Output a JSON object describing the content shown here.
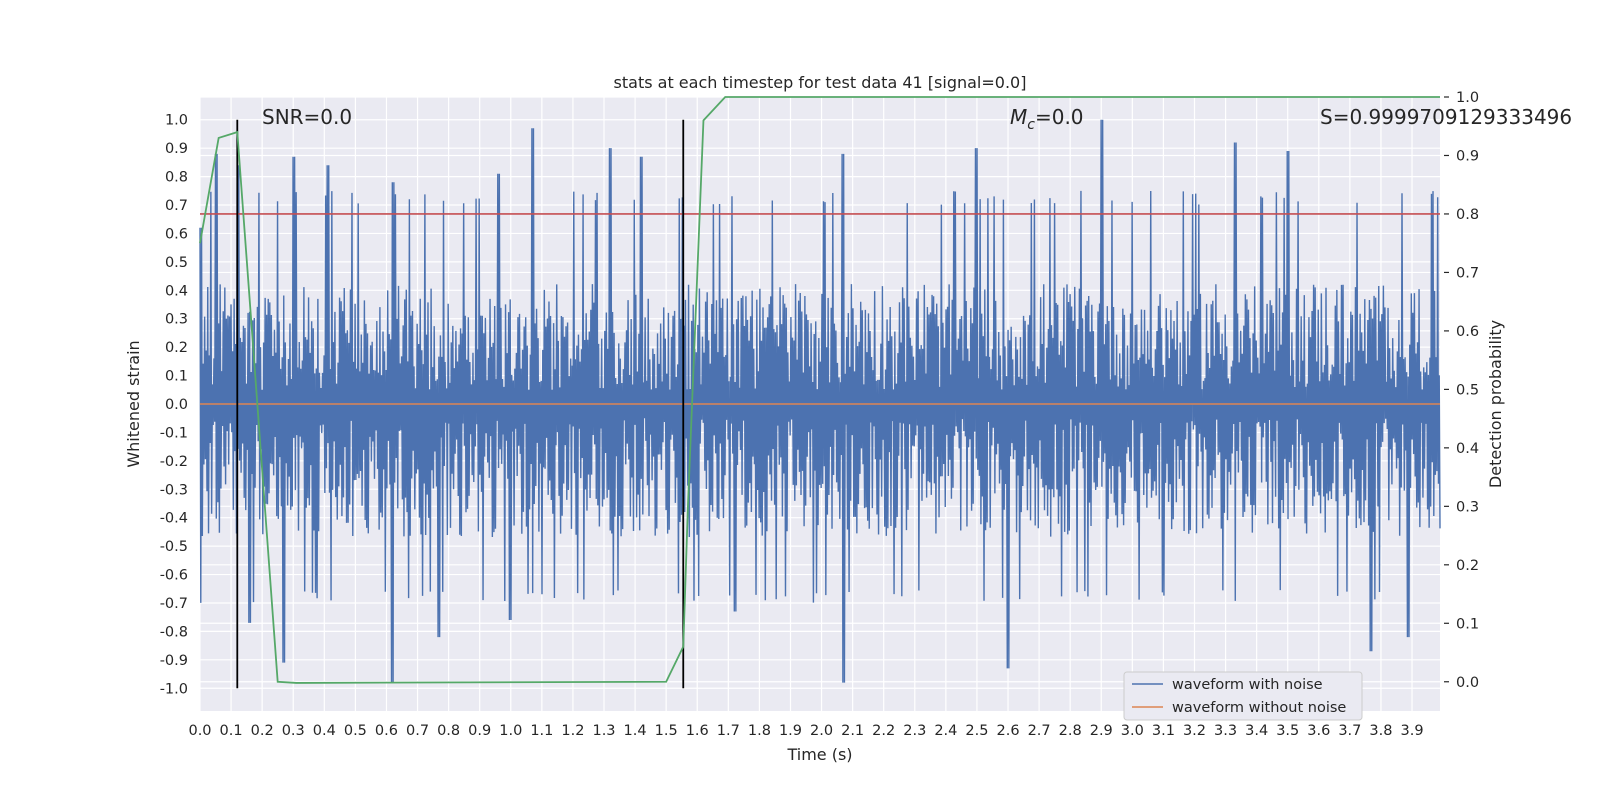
{
  "chart_data": {
    "type": "line",
    "title": "stats at each timestep for test data 41 [signal=0.0]",
    "xlabel": "Time (s)",
    "ylabel": "Whitened strain",
    "y2label": "Detection probability",
    "xlim": [
      0.0,
      3.99
    ],
    "ylim": [
      -1.08,
      1.08
    ],
    "y2lim": [
      -0.05,
      1.0
    ],
    "xticks": [
      "0.0",
      "0.1",
      "0.2",
      "0.3",
      "0.4",
      "0.5",
      "0.6",
      "0.7",
      "0.8",
      "0.9",
      "1.0",
      "1.1",
      "1.2",
      "1.3",
      "1.4",
      "1.5",
      "1.6",
      "1.7",
      "1.8",
      "1.9",
      "2.0",
      "2.1",
      "2.2",
      "2.3",
      "2.4",
      "2.5",
      "2.6",
      "2.7",
      "2.8",
      "2.9",
      "3.0",
      "3.1",
      "3.2",
      "3.3",
      "3.4",
      "3.5",
      "3.6",
      "3.7",
      "3.8",
      "3.9"
    ],
    "yticks": [
      "1.0",
      "0.9",
      "0.8",
      "0.7",
      "0.6",
      "0.5",
      "0.4",
      "0.3",
      "0.2",
      "0.1",
      "0.0",
      "-0.1",
      "-0.2",
      "-0.3",
      "-0.4",
      "-0.5",
      "-0.6",
      "-0.7",
      "-0.8",
      "-0.9",
      "-1.0"
    ],
    "y2ticks": [
      "1.0",
      "0.9",
      "0.8",
      "0.7",
      "0.6",
      "0.5",
      "0.4",
      "0.3",
      "0.2",
      "0.1",
      "0.0"
    ],
    "grid": true,
    "legend_position": "lower-right",
    "annotations": {
      "snr": "SNR=0.0",
      "mc_symbol": "M",
      "mc_sub": "c",
      "mc_value": "=0.0",
      "s_value": "S=0.9999709129333496"
    },
    "threshold": 0.8,
    "vlines": [
      0.12,
      1.555
    ],
    "series": [
      {
        "name": "waveform with noise",
        "color": "#4c72b0",
        "envelope_peaks_pos": [
          [
            0.0,
            0.62
          ],
          [
            0.05,
            0.88
          ],
          [
            0.12,
            0.84
          ],
          [
            0.3,
            0.87
          ],
          [
            0.41,
            0.84
          ],
          [
            0.62,
            0.78
          ],
          [
            0.96,
            0.81
          ],
          [
            1.07,
            0.97
          ],
          [
            1.32,
            0.9
          ],
          [
            1.42,
            0.87
          ],
          [
            2.07,
            0.88
          ],
          [
            2.5,
            0.9
          ],
          [
            2.9,
            1.0
          ],
          [
            3.33,
            0.92
          ],
          [
            3.5,
            0.89
          ]
        ],
        "envelope_peaks_neg": [
          [
            0.16,
            -0.77
          ],
          [
            0.27,
            -0.91
          ],
          [
            0.62,
            -0.98
          ],
          [
            0.77,
            -0.82
          ],
          [
            1.0,
            -0.76
          ],
          [
            1.72,
            -0.73
          ],
          [
            2.07,
            -0.98
          ],
          [
            2.6,
            -0.93
          ],
          [
            3.77,
            -0.87
          ],
          [
            3.89,
            -0.82
          ]
        ]
      },
      {
        "name": "waveform without noise",
        "color": "#dd8452",
        "values_constant": 0.0
      },
      {
        "name": "",
        "color": "#55a868",
        "axis": "right",
        "x": [
          0.0,
          0.06,
          0.12,
          0.17,
          0.25,
          0.31,
          1.5,
          1.555,
          1.57,
          1.62,
          1.69,
          3.99
        ],
        "y": [
          0.75,
          0.93,
          0.94,
          0.58,
          0.0,
          -0.002,
          0.0,
          0.06,
          0.3,
          0.96,
          1.0,
          1.0
        ]
      }
    ],
    "colors": {
      "background": "#eaeaf2",
      "grid": "#ffffff",
      "threshold": "#c44e52",
      "vline": "#000000"
    }
  }
}
